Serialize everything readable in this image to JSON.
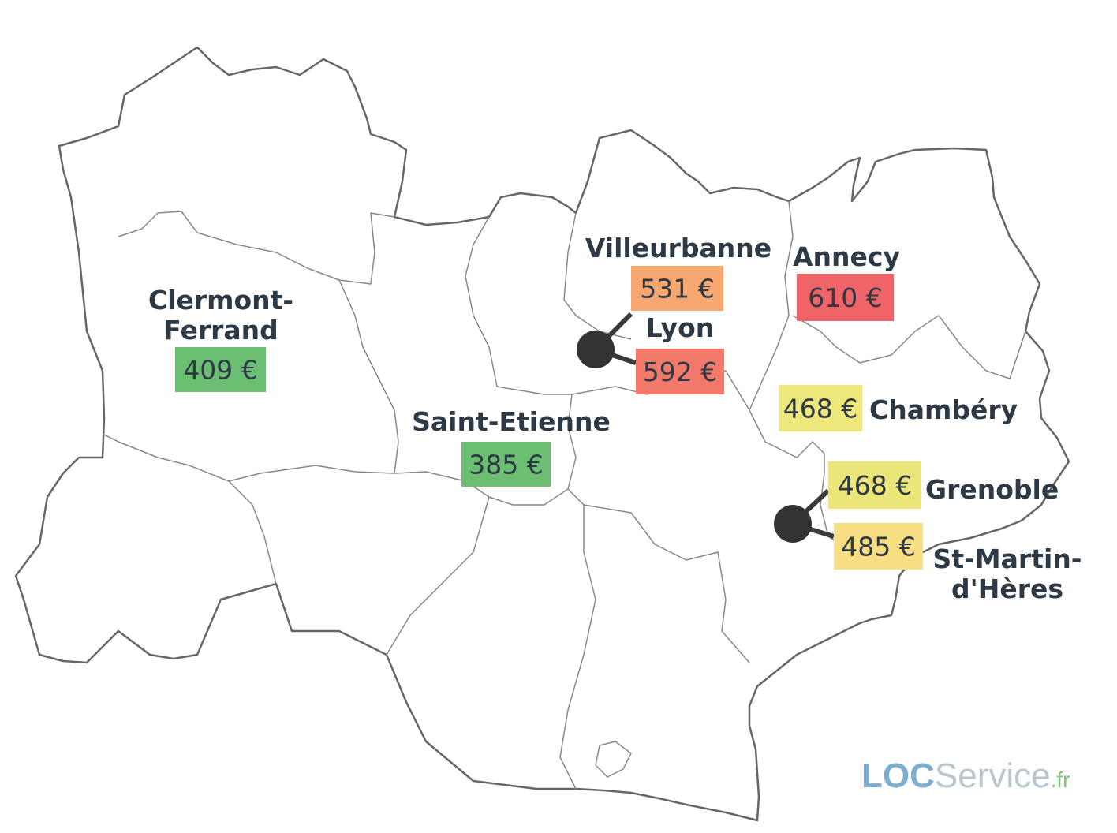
{
  "cities": [
    {
      "name": [
        "Clermont-",
        "Ferrand"
      ],
      "price": "409 €",
      "color": "#6cbf72"
    },
    {
      "name": [
        "Saint-Etienne"
      ],
      "price": "385 €",
      "color": "#6cbf72"
    },
    {
      "name": [
        "Villeurbanne"
      ],
      "price": "531 €",
      "color": "#f6a870"
    },
    {
      "name": [
        "Lyon"
      ],
      "price": "592 €",
      "color": "#f37a6a"
    },
    {
      "name": [
        "Annecy"
      ],
      "price": "610 €",
      "color": "#ef6466"
    },
    {
      "name": [
        "Chambéry"
      ],
      "price": "468 €",
      "color": "#eee87c"
    },
    {
      "name": [
        "Grenoble"
      ],
      "price": "468 €",
      "color": "#ebe57a"
    },
    {
      "name": [
        "St-Martin-",
        "d'Hères"
      ],
      "price": "485 €",
      "color": "#f8de82"
    }
  ],
  "logo": {
    "part1": "LOC",
    "part2": "Service",
    "part3": ".fr"
  }
}
